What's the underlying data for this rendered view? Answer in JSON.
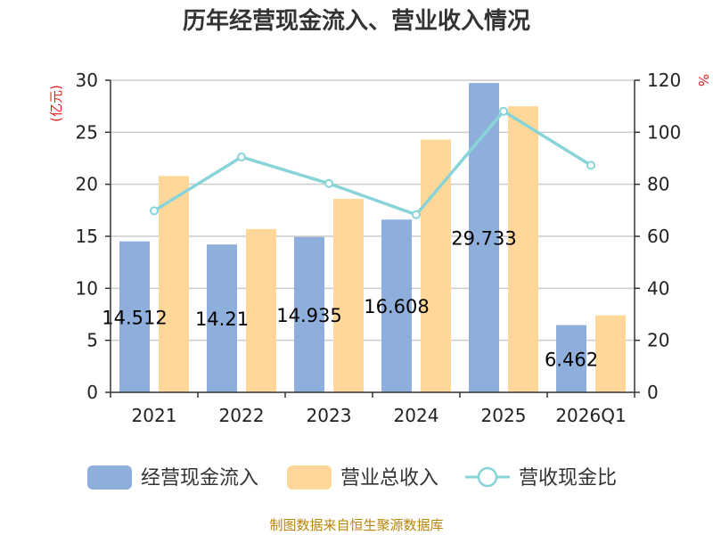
{
  "chart_data": {
    "type": "bar",
    "title": "历年经营现金流入、营业收入情况",
    "categories": [
      "2021",
      "2022",
      "2023",
      "2024",
      "2025",
      "2026Q1"
    ],
    "y_left": {
      "unit": "(亿元)",
      "ylim": [
        0,
        30
      ],
      "ticks": [
        0,
        5,
        10,
        15,
        20,
        25,
        30
      ]
    },
    "y_right": {
      "unit": "%",
      "ylim": [
        0,
        120
      ],
      "ticks": [
        0,
        20,
        40,
        60,
        80,
        100,
        120
      ]
    },
    "grid": true,
    "legend_position": "bottom",
    "series": [
      {
        "name": "经营现金流入",
        "type": "bar",
        "axis": "left",
        "color": "#8eaedb",
        "values": [
          14.512,
          14.21,
          14.935,
          16.608,
          29.733,
          6.462
        ],
        "labels": [
          "14.512",
          "14.21",
          "14.935",
          "16.608",
          "29.733",
          "6.462"
        ]
      },
      {
        "name": "营业总收入",
        "type": "bar",
        "axis": "left",
        "color": "#ffd899",
        "values": [
          20.8,
          15.7,
          18.6,
          24.3,
          27.5,
          7.4
        ]
      },
      {
        "name": "营收现金比",
        "type": "line",
        "axis": "right",
        "color": "#88d4d8",
        "values": [
          69.8,
          90.5,
          80.3,
          68.3,
          108.1,
          87.3
        ]
      }
    ]
  },
  "footer": {
    "source": "制图数据来自恒生聚源数据库"
  }
}
